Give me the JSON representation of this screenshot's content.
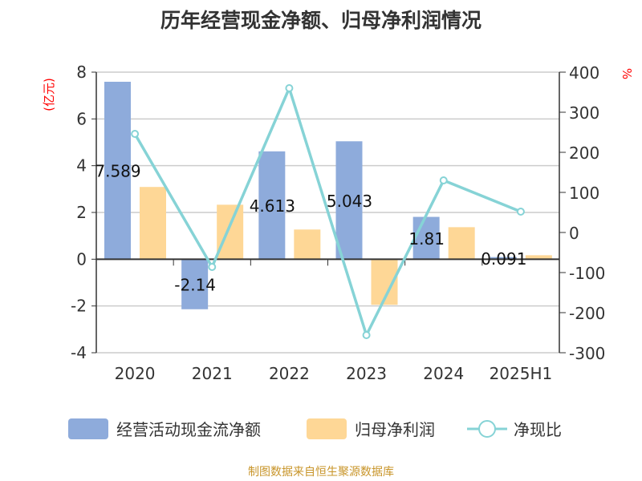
{
  "chart_data": {
    "type": "bar",
    "title": "历年经营现金净额、归母净利润情况",
    "source": "制图数据来自恒生聚源数据库",
    "categories": [
      "2020",
      "2021",
      "2022",
      "2023",
      "2024",
      "2025H1"
    ],
    "y_left": {
      "label": "(亿元)",
      "range": [
        -4,
        8
      ],
      "ticks": [
        "8",
        "6",
        "4",
        "2",
        "0",
        "-2",
        "-4"
      ]
    },
    "y_right": {
      "label": "%",
      "range": [
        -300,
        400
      ],
      "ticks": [
        "400",
        "300",
        "200",
        "100",
        "0",
        "-100",
        "-200",
        "-300"
      ]
    },
    "grid": true,
    "legend_placement": "bottom",
    "series": [
      {
        "name": "经营活动现金流净额",
        "type": "bar",
        "axis": "left",
        "color": "#8eabdb",
        "values": [
          7.589,
          -2.14,
          4.613,
          5.043,
          1.81,
          0.091
        ],
        "labels": [
          "7.589",
          "-2.14",
          "4.613",
          "5.043",
          "1.81",
          "0.091"
        ]
      },
      {
        "name": "归母净利润",
        "type": "bar",
        "axis": "left",
        "color": "#fed796",
        "values": [
          3.09,
          2.33,
          1.27,
          -1.95,
          1.37,
          0.17
        ]
      },
      {
        "name": "净现比",
        "type": "line",
        "axis": "right",
        "color": "#86d3d6",
        "values": [
          246,
          -86,
          360,
          -256,
          130,
          52
        ]
      }
    ]
  }
}
